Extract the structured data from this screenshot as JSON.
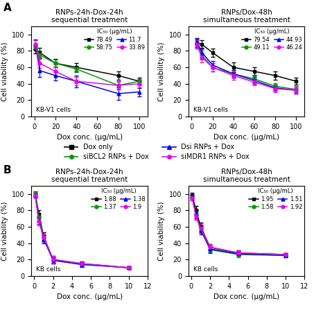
{
  "legend": "center",
  "chart_data": [
    {
      "type": "line",
      "panel_label": "A",
      "title": "RNPs-24h-Dox-24h\nsequential treatment",
      "x_label": "Dox conc. (μg/mL)",
      "y_label": "Cell viability (%)",
      "annotations": [
        "KB-V1 cells"
      ],
      "ic50_label": "IC₅₀ (μg/mL)",
      "x": [
        1,
        5,
        20,
        40,
        80,
        100
      ],
      "series": [
        {
          "name": "Dox only",
          "color": "#000000",
          "marker": "s",
          "values": [
            82,
            78,
            65,
            60,
            50,
            43
          ],
          "errors": [
            5,
            6,
            5,
            5,
            5,
            4
          ],
          "ic50": 78.49
        },
        {
          "name": "siBCL2 RNPs + Dox",
          "color": "#009900",
          "marker": "o",
          "values": [
            85,
            75,
            65,
            58,
            38,
            43
          ],
          "errors": [
            4,
            5,
            4,
            4,
            4,
            3
          ],
          "ic50": 58.75
        },
        {
          "name": "Dsi RNPs + Dox",
          "color": "#0000ee",
          "marker": "^",
          "values": [
            88,
            56,
            50,
            43,
            28,
            30
          ],
          "errors": [
            6,
            8,
            6,
            7,
            8,
            5
          ],
          "ic50": 11.7
        },
        {
          "name": "siMDR1 RNPs + Dox",
          "color": "#ee00ee",
          "marker": "o",
          "values": [
            88,
            65,
            55,
            43,
            38,
            40
          ],
          "errors": [
            5,
            6,
            5,
            5,
            5,
            4
          ],
          "ic50": 33.89
        }
      ],
      "xlim": [
        -3,
        108
      ],
      "xticks": [
        0,
        20,
        40,
        60,
        80,
        100
      ],
      "ylim": [
        0,
        110
      ],
      "yticks": [
        0,
        20,
        40,
        60,
        80,
        100
      ]
    },
    {
      "type": "line",
      "title": "RNPs/Dox-48h\nsimultaneous treatment",
      "x_label": "Dox conc. (μg/mL)",
      "y_label": "Cell viability (%)",
      "annotations": [
        "KB-V1 cells"
      ],
      "ic50_label": "IC₅₀ (μg/mL)",
      "x": [
        5,
        10,
        20,
        40,
        60,
        80,
        100
      ],
      "series": [
        {
          "name": "Dox only",
          "color": "#000000",
          "marker": "s",
          "values": [
            90,
            88,
            78,
            60,
            55,
            50,
            43
          ],
          "errors": [
            5,
            5,
            5,
            6,
            5,
            5,
            4
          ],
          "ic50": 79.54
        },
        {
          "name": "siBCL2 RNPs + Dox",
          "color": "#009900",
          "marker": "o",
          "values": [
            88,
            75,
            60,
            52,
            46,
            37,
            33
          ],
          "errors": [
            5,
            6,
            5,
            5,
            5,
            4,
            4
          ],
          "ic50": 49.11
        },
        {
          "name": "Dsi RNPs + Dox",
          "color": "#0000ee",
          "marker": "^",
          "values": [
            91,
            78,
            63,
            52,
            44,
            35,
            32
          ],
          "errors": [
            5,
            6,
            5,
            5,
            4,
            4,
            4
          ],
          "ic50": 44.93
        },
        {
          "name": "siMDR1 RNPs + Dox",
          "color": "#ee00ee",
          "marker": "o",
          "values": [
            88,
            72,
            60,
            50,
            42,
            34,
            32
          ],
          "errors": [
            5,
            6,
            5,
            5,
            4,
            4,
            4
          ],
          "ic50": 46.24
        }
      ],
      "xlim": [
        -3,
        108
      ],
      "xticks": [
        0,
        20,
        40,
        60,
        80,
        100
      ],
      "ylim": [
        0,
        110
      ],
      "yticks": [
        0,
        20,
        40,
        60,
        80,
        100
      ]
    },
    {
      "type": "line",
      "panel_label": "B",
      "title": "RNPs-24h-Dox-24h\nsequential treatment",
      "x_label": "Dox conc. (μg/mL)",
      "y_label": "Cell viability (%)",
      "annotations": [
        "KB cells"
      ],
      "ic50_label": "IC₅₀ (μg/mL)",
      "x": [
        0.1,
        0.5,
        1,
        2,
        5,
        10
      ],
      "series": [
        {
          "name": "Dox only",
          "color": "#000000",
          "marker": "s",
          "values": [
            100,
            75,
            48,
            20,
            15,
            10
          ],
          "errors": [
            3,
            5,
            5,
            4,
            3,
            2
          ],
          "ic50": 1.88
        },
        {
          "name": "siBCL2 RNPs + Dox",
          "color": "#009900",
          "marker": "o",
          "values": [
            100,
            72,
            46,
            19,
            14,
            10
          ],
          "errors": [
            3,
            5,
            5,
            4,
            3,
            2
          ],
          "ic50": 1.37
        },
        {
          "name": "Dsi RNPs + Dox",
          "color": "#0000ee",
          "marker": "^",
          "values": [
            98,
            68,
            45,
            19,
            14,
            10
          ],
          "errors": [
            3,
            5,
            5,
            4,
            3,
            2
          ],
          "ic50": 1.38
        },
        {
          "name": "siMDR1 RNPs + Dox",
          "color": "#ee00ee",
          "marker": "o",
          "values": [
            98,
            67,
            47,
            20,
            15,
            10
          ],
          "errors": [
            3,
            5,
            5,
            4,
            3,
            2
          ],
          "ic50": 1.9
        }
      ],
      "xlim": [
        -0.3,
        12
      ],
      "xticks": [
        0,
        2,
        4,
        6,
        8,
        10,
        12
      ],
      "ylim": [
        0,
        110
      ],
      "yticks": [
        0,
        20,
        40,
        60,
        80,
        100
      ]
    },
    {
      "type": "line",
      "title": "RNPs/Dox-48h\nsimultaneous treatment",
      "x_label": "Dox conc. (μg/mL)",
      "y_label": "Cell viability (%)",
      "annotations": [
        "KB cells"
      ],
      "ic50_label": "IC₅₀ (μg/mL)",
      "x": [
        0.1,
        0.5,
        1,
        2,
        5,
        10
      ],
      "series": [
        {
          "name": "Dox only",
          "color": "#000000",
          "marker": "s",
          "values": [
            98,
            80,
            60,
            35,
            28,
            26
          ],
          "errors": [
            3,
            5,
            5,
            4,
            3,
            2
          ],
          "ic50": 1.95
        },
        {
          "name": "siBCL2 RNPs + Dox",
          "color": "#009900",
          "marker": "o",
          "values": [
            95,
            75,
            57,
            32,
            26,
            25
          ],
          "errors": [
            3,
            5,
            5,
            4,
            3,
            2
          ],
          "ic50": 1.58
        },
        {
          "name": "Dsi RNPs + Dox",
          "color": "#0000ee",
          "marker": "^",
          "values": [
            97,
            75,
            56,
            33,
            27,
            25
          ],
          "errors": [
            3,
            5,
            5,
            4,
            3,
            2
          ],
          "ic50": 1.51
        },
        {
          "name": "siMDR1 RNPs + Dox",
          "color": "#ee00ee",
          "marker": "o",
          "values": [
            95,
            73,
            58,
            35,
            28,
            26
          ],
          "errors": [
            3,
            5,
            5,
            4,
            3,
            2
          ],
          "ic50": 1.92
        }
      ],
      "xlim": [
        -0.3,
        12
      ],
      "xticks": [
        0,
        2,
        4,
        6,
        8,
        10,
        12
      ],
      "ylim": [
        0,
        110
      ],
      "yticks": [
        0,
        20,
        40,
        60,
        80,
        100
      ]
    }
  ]
}
